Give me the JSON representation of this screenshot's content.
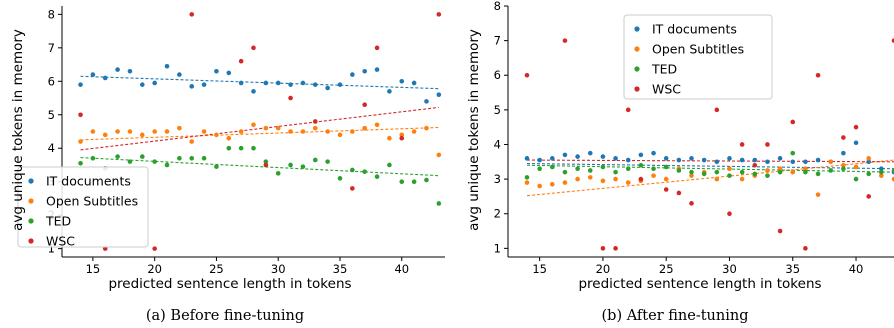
{
  "chart_data": [
    {
      "type": "scatter",
      "caption": "(a) Before fine-tuning",
      "xlabel": "predicted sentence length in tokens",
      "ylabel": "avg unique tokens in memory",
      "xlim": [
        12.5,
        43.5
      ],
      "ylim": [
        0.75,
        8.25
      ],
      "xticks": [
        15,
        20,
        25,
        30,
        35,
        40
      ],
      "yticks": [
        1,
        2,
        3,
        4,
        5,
        6,
        7,
        8
      ],
      "grid": false,
      "legend_position": "lower-left",
      "series": [
        {
          "name": "IT documents",
          "color": "#1f77b4",
          "points": [
            [
              14,
              5.9
            ],
            [
              15,
              6.2
            ],
            [
              16,
              6.1
            ],
            [
              17,
              6.35
            ],
            [
              18,
              6.3
            ],
            [
              19,
              5.9
            ],
            [
              20,
              5.95
            ],
            [
              21,
              6.45
            ],
            [
              22,
              6.2
            ],
            [
              23,
              5.85
            ],
            [
              24,
              5.9
            ],
            [
              25,
              6.3
            ],
            [
              26,
              6.25
            ],
            [
              27,
              5.95
            ],
            [
              28,
              5.7
            ],
            [
              29,
              5.95
            ],
            [
              30,
              5.95
            ],
            [
              31,
              5.9
            ],
            [
              32,
              5.95
            ],
            [
              33,
              5.9
            ],
            [
              34,
              5.8
            ],
            [
              35,
              5.9
            ],
            [
              36,
              6.2
            ],
            [
              37,
              6.3
            ],
            [
              38,
              6.35
            ],
            [
              39,
              5.7
            ],
            [
              40,
              6.0
            ],
            [
              41,
              5.95
            ],
            [
              42,
              5.4
            ],
            [
              43,
              5.6
            ]
          ],
          "trend": [
            [
              14,
              6.15
            ],
            [
              43,
              5.78
            ]
          ]
        },
        {
          "name": "Open Subtitles",
          "color": "#ff7f0e",
          "points": [
            [
              14,
              4.2
            ],
            [
              15,
              4.5
            ],
            [
              16,
              4.4
            ],
            [
              17,
              4.5
            ],
            [
              18,
              4.5
            ],
            [
              19,
              4.4
            ],
            [
              20,
              4.5
            ],
            [
              21,
              4.5
            ],
            [
              22,
              4.6
            ],
            [
              23,
              4.2
            ],
            [
              24,
              4.5
            ],
            [
              25,
              4.4
            ],
            [
              26,
              4.3
            ],
            [
              27,
              4.5
            ],
            [
              28,
              4.7
            ],
            [
              29,
              4.6
            ],
            [
              30,
              4.6
            ],
            [
              31,
              4.5
            ],
            [
              32,
              4.5
            ],
            [
              33,
              4.6
            ],
            [
              34,
              4.5
            ],
            [
              35,
              4.4
            ],
            [
              36,
              4.5
            ],
            [
              37,
              4.6
            ],
            [
              38,
              4.7
            ],
            [
              39,
              4.3
            ],
            [
              40,
              4.4
            ],
            [
              41,
              4.5
            ],
            [
              42,
              4.6
            ],
            [
              43,
              3.8
            ]
          ],
          "trend": [
            [
              14,
              4.25
            ],
            [
              43,
              4.62
            ]
          ]
        },
        {
          "name": "TED",
          "color": "#2ca02c",
          "points": [
            [
              14,
              3.55
            ],
            [
              15,
              3.7
            ],
            [
              16,
              3.4
            ],
            [
              17,
              3.75
            ],
            [
              18,
              3.6
            ],
            [
              19,
              3.75
            ],
            [
              20,
              3.6
            ],
            [
              21,
              3.5
            ],
            [
              22,
              3.7
            ],
            [
              23,
              3.7
            ],
            [
              24,
              3.7
            ],
            [
              25,
              3.45
            ],
            [
              26,
              4.0
            ],
            [
              27,
              4.0
            ],
            [
              28,
              4.0
            ],
            [
              29,
              3.6
            ],
            [
              30,
              3.25
            ],
            [
              31,
              3.5
            ],
            [
              32,
              3.45
            ],
            [
              33,
              3.65
            ],
            [
              34,
              3.6
            ],
            [
              35,
              3.1
            ],
            [
              36,
              3.35
            ],
            [
              37,
              3.3
            ],
            [
              38,
              3.15
            ],
            [
              39,
              3.5
            ],
            [
              40,
              3.0
            ],
            [
              41,
              3.0
            ],
            [
              42,
              3.05
            ],
            [
              43,
              2.35
            ]
          ],
          "trend": [
            [
              14,
              3.72
            ],
            [
              43,
              3.18
            ]
          ]
        },
        {
          "name": "WSC",
          "color": "#d62728",
          "points": [
            [
              14,
              5.0
            ],
            [
              16,
              1.0
            ],
            [
              20,
              1.0
            ],
            [
              23,
              8.0
            ],
            [
              27,
              6.6
            ],
            [
              28,
              7.0
            ],
            [
              29,
              3.5
            ],
            [
              31,
              5.5
            ],
            [
              33,
              4.8
            ],
            [
              36,
              2.8
            ],
            [
              37,
              5.3
            ],
            [
              38,
              7.0
            ],
            [
              40,
              4.3
            ],
            [
              43,
              8.0
            ]
          ],
          "trend": [
            [
              14,
              3.95
            ],
            [
              43,
              5.22
            ]
          ]
        }
      ]
    },
    {
      "type": "scatter",
      "caption": "(b) After fine-tuning",
      "xlabel": "predicted sentence length in tokens",
      "ylabel": "avg unique tokens in memory",
      "xlim": [
        12.5,
        43.0
      ],
      "ylim": [
        0.75,
        8.0
      ],
      "xticks": [
        15,
        20,
        25,
        30,
        35,
        40
      ],
      "yticks": [
        1,
        2,
        3,
        4,
        5,
        6,
        7,
        8
      ],
      "grid": false,
      "legend_position": "top-center",
      "series": [
        {
          "name": "IT documents",
          "color": "#1f77b4",
          "points": [
            [
              14,
              3.6
            ],
            [
              15,
              3.55
            ],
            [
              16,
              3.6
            ],
            [
              17,
              3.7
            ],
            [
              18,
              3.65
            ],
            [
              19,
              3.75
            ],
            [
              20,
              3.65
            ],
            [
              21,
              3.6
            ],
            [
              22,
              3.55
            ],
            [
              23,
              3.7
            ],
            [
              24,
              3.75
            ],
            [
              25,
              3.6
            ],
            [
              26,
              3.55
            ],
            [
              27,
              3.6
            ],
            [
              28,
              3.55
            ],
            [
              29,
              3.5
            ],
            [
              30,
              3.6
            ],
            [
              31,
              3.55
            ],
            [
              32,
              3.55
            ],
            [
              33,
              3.5
            ],
            [
              34,
              3.6
            ],
            [
              35,
              3.5
            ],
            [
              36,
              3.5
            ],
            [
              37,
              3.55
            ],
            [
              38,
              3.5
            ],
            [
              39,
              3.75
            ],
            [
              40,
              4.05
            ],
            [
              41,
              3.5
            ],
            [
              42,
              3.3
            ],
            [
              43,
              3.2
            ]
          ],
          "trend": [
            [
              14,
              3.45
            ],
            [
              43,
              3.3
            ]
          ]
        },
        {
          "name": "Open Subtitles",
          "color": "#ff7f0e",
          "points": [
            [
              14,
              2.9
            ],
            [
              15,
              2.8
            ],
            [
              16,
              2.85
            ],
            [
              17,
              2.9
            ],
            [
              18,
              3.0
            ],
            [
              19,
              3.05
            ],
            [
              20,
              2.95
            ],
            [
              21,
              3.0
            ],
            [
              22,
              2.9
            ],
            [
              23,
              2.95
            ],
            [
              24,
              3.1
            ],
            [
              25,
              3.0
            ],
            [
              26,
              3.3
            ],
            [
              27,
              3.1
            ],
            [
              28,
              3.2
            ],
            [
              29,
              3.0
            ],
            [
              30,
              3.3
            ],
            [
              31,
              3.0
            ],
            [
              32,
              3.1
            ],
            [
              33,
              3.25
            ],
            [
              34,
              3.3
            ],
            [
              35,
              3.2
            ],
            [
              36,
              3.3
            ],
            [
              37,
              2.55
            ],
            [
              38,
              3.5
            ],
            [
              39,
              3.4
            ],
            [
              40,
              3.35
            ],
            [
              41,
              3.6
            ],
            [
              42,
              3.1
            ],
            [
              43,
              3.0
            ]
          ],
          "trend": [
            [
              14,
              2.52
            ],
            [
              43,
              3.55
            ]
          ]
        },
        {
          "name": "TED",
          "color": "#2ca02c",
          "points": [
            [
              14,
              3.05
            ],
            [
              15,
              3.3
            ],
            [
              16,
              3.35
            ],
            [
              17,
              3.2
            ],
            [
              18,
              3.3
            ],
            [
              19,
              3.25
            ],
            [
              20,
              3.35
            ],
            [
              21,
              3.2
            ],
            [
              22,
              3.3
            ],
            [
              23,
              3.4
            ],
            [
              24,
              3.3
            ],
            [
              25,
              3.35
            ],
            [
              26,
              3.25
            ],
            [
              27,
              3.2
            ],
            [
              28,
              3.15
            ],
            [
              29,
              3.2
            ],
            [
              30,
              3.1
            ],
            [
              31,
              3.2
            ],
            [
              32,
              3.15
            ],
            [
              33,
              3.1
            ],
            [
              34,
              3.2
            ],
            [
              35,
              3.75
            ],
            [
              36,
              3.2
            ],
            [
              37,
              3.15
            ],
            [
              38,
              3.25
            ],
            [
              39,
              3.3
            ],
            [
              40,
              3.0
            ],
            [
              41,
              3.15
            ],
            [
              42,
              3.2
            ],
            [
              43,
              3.25
            ]
          ],
          "trend": [
            [
              14,
              3.4
            ],
            [
              43,
              3.2
            ]
          ]
        },
        {
          "name": "WSC",
          "color": "#d62728",
          "points": [
            [
              14,
              6.0
            ],
            [
              17,
              7.0
            ],
            [
              20,
              1.0
            ],
            [
              21,
              1.0
            ],
            [
              22,
              5.0
            ],
            [
              23,
              3.0
            ],
            [
              25,
              2.7
            ],
            [
              26,
              2.6
            ],
            [
              27,
              2.3
            ],
            [
              29,
              5.0
            ],
            [
              30,
              2.0
            ],
            [
              31,
              4.0
            ],
            [
              32,
              3.4
            ],
            [
              33,
              4.0
            ],
            [
              34,
              1.5
            ],
            [
              35,
              4.65
            ],
            [
              36,
              1.0
            ],
            [
              37,
              6.0
            ],
            [
              39,
              4.2
            ],
            [
              40,
              4.5
            ],
            [
              41,
              2.5
            ],
            [
              43,
              7.0
            ]
          ],
          "trend": [
            [
              14,
              3.55
            ],
            [
              43,
              3.5
            ]
          ]
        }
      ]
    }
  ]
}
